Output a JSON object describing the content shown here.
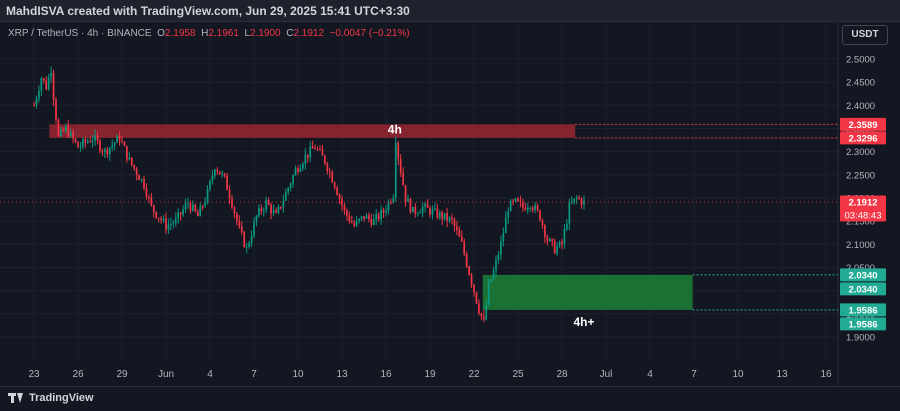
{
  "header": {
    "title": "MahdISVA created with TradingView.com, Jun 29, 2025 15:41 UTC+3:30"
  },
  "legend": {
    "symbol": "XRP / TetherUS · 4h · BINANCE",
    "o_label": "O",
    "o": "2.1958",
    "h_label": "H",
    "h": "2.1961",
    "l_label": "L",
    "l": "2.1900",
    "c_label": "C",
    "c": "2.1912",
    "change": "−0.0047 (−0.21%)"
  },
  "currency": "USDT",
  "brand": "TradingView",
  "colors": {
    "up": "#089981",
    "down": "#f23645",
    "supply_zone": "#b22833",
    "demand_zone": "#1e8a3a",
    "background": "#131722"
  },
  "chart_data": {
    "type": "candlestick",
    "symbol": "XRP/USDT",
    "timeframe": "4h",
    "y_ticks": [
      "2.5000",
      "2.4500",
      "2.4000",
      "2.3500",
      "2.3000",
      "2.2500",
      "2.2000",
      "2.1500",
      "2.1000",
      "2.0500",
      "2.0000",
      "1.9500",
      "1.9000"
    ],
    "ylim": [
      1.885,
      2.53
    ],
    "x_ticks": [
      "23",
      "26",
      "29",
      "Jun",
      "4",
      "7",
      "10",
      "13",
      "16",
      "19",
      "22",
      "25",
      "28",
      "Jul",
      "4",
      "7",
      "10",
      "13",
      "16"
    ],
    "price_path": [
      [
        "May 23 00:00",
        2.4
      ],
      [
        "May 23 12:00",
        2.46
      ],
      [
        "May 23 20:00",
        2.44
      ],
      [
        "May 24 04:00",
        2.48
      ],
      [
        "May 24 08:00",
        2.42
      ],
      [
        "May 24 16:00",
        2.33
      ],
      [
        "May 25 04:00",
        2.35
      ],
      [
        "May 26 00:00",
        2.31
      ],
      [
        "May 27 00:00",
        2.33
      ],
      [
        "May 27 20:00",
        2.3
      ],
      [
        "May 28 20:00",
        2.33
      ],
      [
        "May 29 12:00",
        2.28
      ],
      [
        "May 30 12:00",
        2.23
      ],
      [
        "May 31 00:00",
        2.18
      ],
      [
        "Jun 01 00:00",
        2.14
      ],
      [
        "Jun 01 16:00",
        2.15
      ],
      [
        "Jun 02 12:00",
        2.19
      ],
      [
        "Jun 03 04:00",
        2.16
      ],
      [
        "Jun 03 20:00",
        2.21
      ],
      [
        "Jun 04 08:00",
        2.27
      ],
      [
        "Jun 05 00:00",
        2.24
      ],
      [
        "Jun 05 12:00",
        2.19
      ],
      [
        "Jun 06 00:00",
        2.13
      ],
      [
        "Jun 06 12:00",
        2.09
      ],
      [
        "Jun 07 04:00",
        2.16
      ],
      [
        "Jun 07 20:00",
        2.19
      ],
      [
        "Jun 08 12:00",
        2.16
      ],
      [
        "Jun 09 04:00",
        2.21
      ],
      [
        "Jun 09 20:00",
        2.26
      ],
      [
        "Jun 10 12:00",
        2.29
      ],
      [
        "Jun 11 04:00",
        2.31
      ],
      [
        "Jun 11 20:00",
        2.28
      ],
      [
        "Jun 12 12:00",
        2.23
      ],
      [
        "Jun 13 04:00",
        2.17
      ],
      [
        "Jun 13 20:00",
        2.14
      ],
      [
        "Jun 14 12:00",
        2.16
      ],
      [
        "Jun 15 04:00",
        2.15
      ],
      [
        "Jun 15 20:00",
        2.17
      ],
      [
        "Jun 16 12:00",
        2.21
      ],
      [
        "Jun 16 16:00",
        2.33
      ],
      [
        "Jun 16 20:00",
        2.29
      ],
      [
        "Jun 17 08:00",
        2.2
      ],
      [
        "Jun 17 20:00",
        2.17
      ],
      [
        "Jun 18 12:00",
        2.18
      ],
      [
        "Jun 19 04:00",
        2.17
      ],
      [
        "Jun 19 20:00",
        2.16
      ],
      [
        "Jun 20 12:00",
        2.15
      ],
      [
        "Jun 21 04:00",
        2.1
      ],
      [
        "Jun 21 20:00",
        2.02
      ],
      [
        "Jun 22 08:00",
        1.96
      ],
      [
        "Jun 22 16:00",
        1.93
      ],
      [
        "Jun 23 00:00",
        2.01
      ],
      [
        "Jun 23 08:00",
        2.04
      ],
      [
        "Jun 23 20:00",
        2.1
      ],
      [
        "Jun 24 08:00",
        2.18
      ],
      [
        "Jun 24 20:00",
        2.19
      ],
      [
        "Jun 25 08:00",
        2.18
      ],
      [
        "Jun 25 20:00",
        2.19
      ],
      [
        "Jun 26 12:00",
        2.16
      ],
      [
        "Jun 27 00:00",
        2.11
      ],
      [
        "Jun 27 12:00",
        2.09
      ],
      [
        "Jun 28 00:00",
        2.1
      ],
      [
        "Jun 28 12:00",
        2.18
      ],
      [
        "Jun 29 00:00",
        2.2
      ],
      [
        "Jun 29 12:00",
        2.19
      ]
    ],
    "supply_zone": {
      "label": "4h",
      "top": 2.3589,
      "bottom": 2.3296
    },
    "demand_zone": {
      "label": "4h+",
      "top": 2.034,
      "bottom": 1.9586
    },
    "price_tags": [
      {
        "text": "2.3589",
        "value": 2.3589,
        "color": "#f23645"
      },
      {
        "text": "2.3296",
        "value": 2.3296,
        "color": "#f23645"
      },
      {
        "text": "2.1912",
        "value": 2.1912,
        "color": "#f23645",
        "sub": "03:48:43"
      },
      {
        "text": "2.0340",
        "value": 2.034,
        "color": "#22ab94"
      },
      {
        "text": "2.0340",
        "value": 2.034,
        "color": "#22ab94",
        "stack": 1
      },
      {
        "text": "1.9586",
        "value": 1.9586,
        "color": "#22ab94"
      },
      {
        "text": "1.9586",
        "value": 1.9586,
        "color": "#22ab94",
        "stack": 1
      }
    ]
  }
}
